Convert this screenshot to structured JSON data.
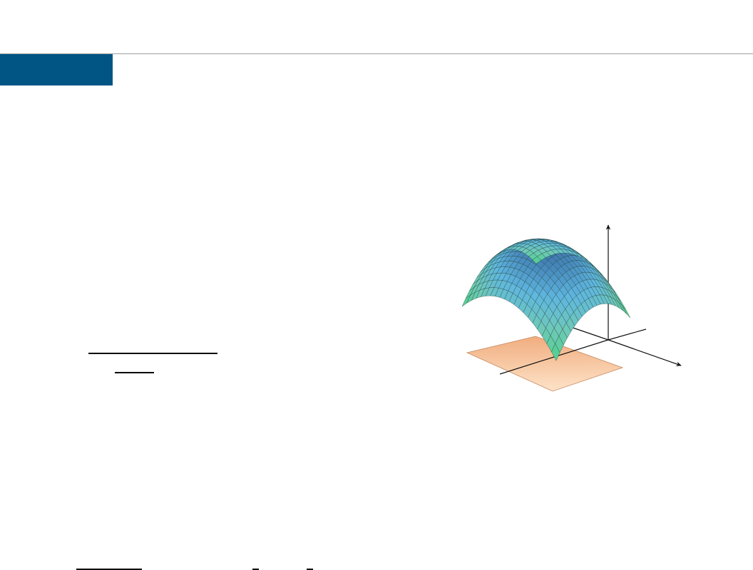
{
  "slide": {
    "colors": {
      "accent": "#005585",
      "rule": "#9e9e9e"
    }
  },
  "figure": {
    "surface_colormap": [
      "#4fd08a",
      "#6fc9b8",
      "#5fb6e0",
      "#3e78b0"
    ],
    "region_colors": [
      "#f1ad7f",
      "#fde3c8"
    ],
    "axis_color": "#111111"
  }
}
